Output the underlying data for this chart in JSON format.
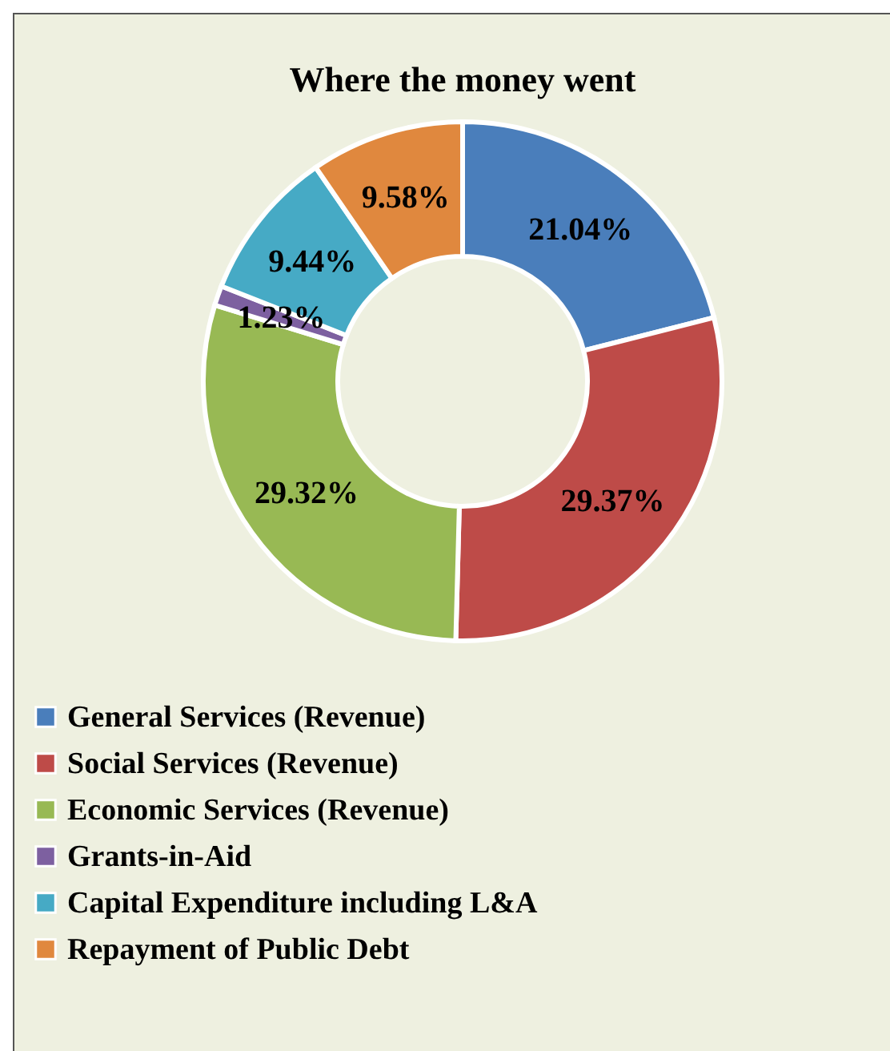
{
  "chart_data": {
    "type": "donut",
    "title": "Where the money went",
    "categories": [
      "General Services (Revenue)",
      "Social Services (Revenue)",
      "Economic Services (Revenue)",
      "Grants-in-Aid",
      "Capital Expenditure including  L&A",
      "Repayment of Public Debt"
    ],
    "values": [
      21.04,
      29.37,
      29.32,
      1.23,
      9.44,
      9.58
    ],
    "colors": [
      "#4a7ebb",
      "#be4b48",
      "#98b954",
      "#7d60a0",
      "#46aac5",
      "#e0883e"
    ],
    "value_labels": [
      "21.04%",
      "29.37%",
      "29.32%",
      "1.23%",
      "9.44%",
      "9.58%"
    ],
    "legend": "bottom"
  }
}
